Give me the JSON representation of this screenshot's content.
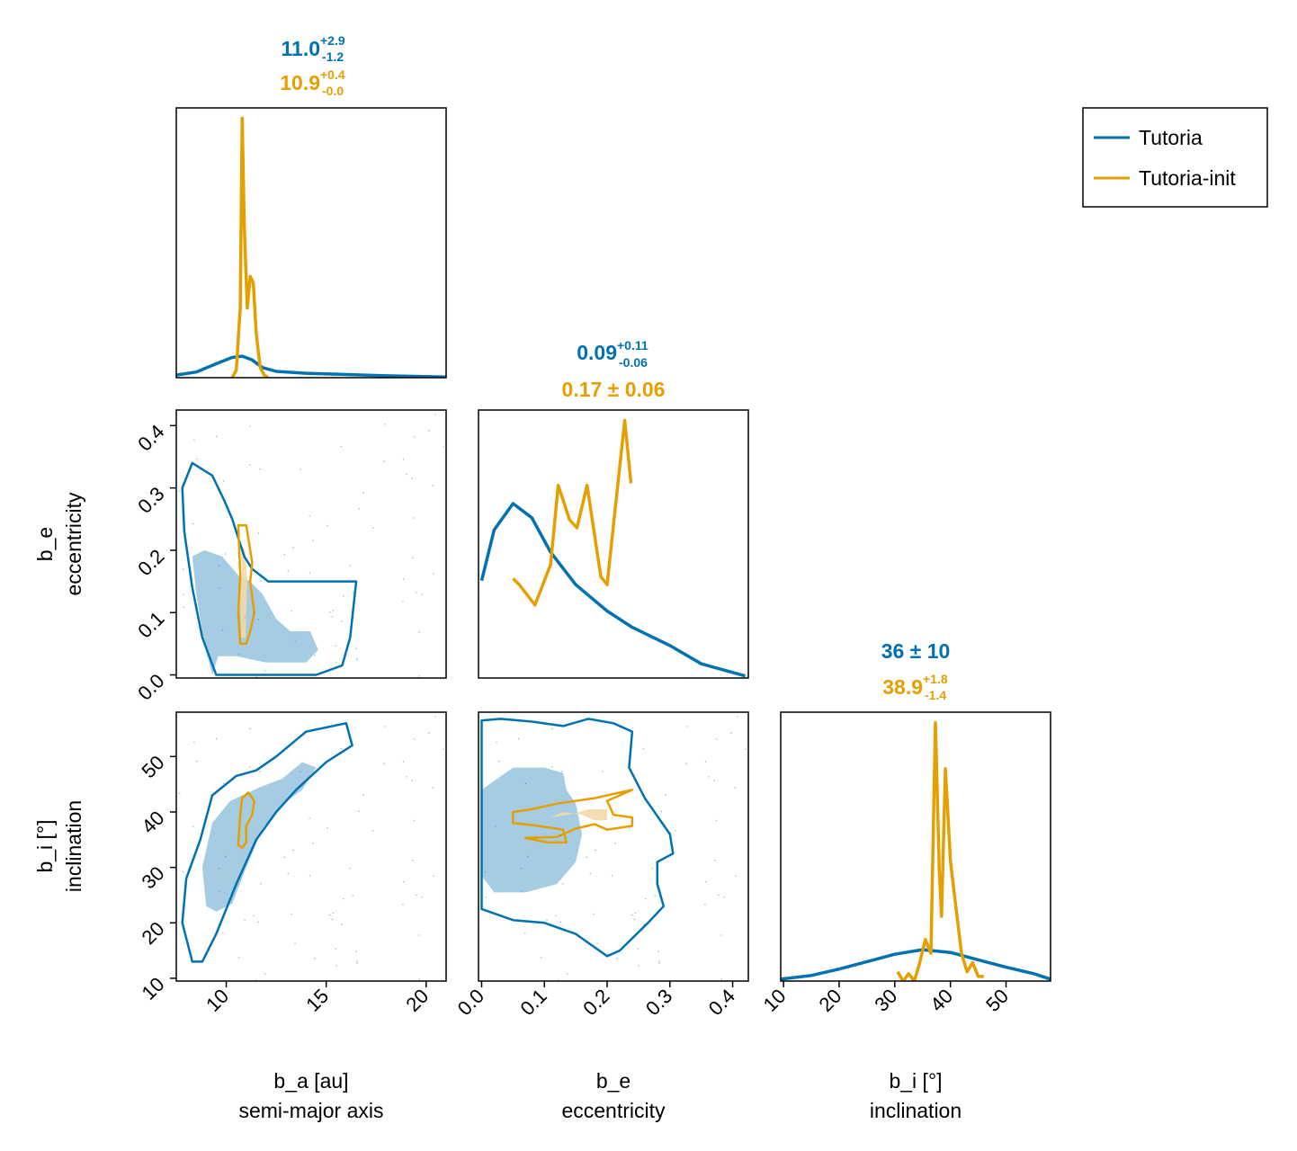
{
  "colors": {
    "tutoria": "#0072b2",
    "tutoria_init": "#e69f00",
    "fill_outer": "#a6cce3",
    "fill_init": "#f3d9a8"
  },
  "legend": {
    "placement": "top-right",
    "items": [
      {
        "label": "Tutoria",
        "color": "#0072b2"
      },
      {
        "label": "Tutoria-init",
        "color": "#e69f00"
      }
    ]
  },
  "axes": {
    "a": {
      "label": "b_a [au]",
      "sublabel": "semi-major axis",
      "range": [
        7.5,
        21
      ],
      "ticks": [
        "10",
        "15",
        "20"
      ],
      "tick_values": [
        10,
        15,
        20
      ]
    },
    "e": {
      "label": "b_e",
      "sublabel": "eccentricity",
      "range": [
        -0.005,
        0.425
      ],
      "ticks": [
        "0.0",
        "0.1",
        "0.2",
        "0.3",
        "0.4"
      ],
      "tick_values": [
        0.0,
        0.1,
        0.2,
        0.3,
        0.4
      ]
    },
    "i": {
      "label": "b_i [°]",
      "sublabel": "inclination",
      "range": [
        9.5,
        58
      ],
      "ticks": [
        "10",
        "20",
        "30",
        "40",
        "50"
      ],
      "tick_values": [
        10,
        20,
        30,
        40,
        50
      ]
    }
  },
  "summaries": {
    "a": {
      "tutoria": {
        "value": "11.0",
        "plus": "+2.9",
        "minus": "-1.2"
      },
      "init": {
        "value": "10.9",
        "plus": "+0.4",
        "minus": "-0.0"
      }
    },
    "e": {
      "tutoria": {
        "value": "0.09",
        "plus": "+0.11",
        "minus": "-0.06"
      },
      "init": {
        "text": "0.17 ± 0.06"
      }
    },
    "i": {
      "tutoria": {
        "text": "36 ± 10"
      },
      "init": {
        "value": "38.9",
        "plus": "+1.8",
        "minus": "-1.4"
      }
    }
  },
  "chart_data": {
    "type": "corner",
    "series": [
      "Tutoria",
      "Tutoria-init"
    ],
    "marginals": {
      "a": {
        "tutoria": [
          [
            7.5,
            0.02
          ],
          [
            8.5,
            0.045
          ],
          [
            9.5,
            0.11
          ],
          [
            10.3,
            0.16
          ],
          [
            10.8,
            0.17
          ],
          [
            11.3,
            0.14
          ],
          [
            11.8,
            0.08
          ],
          [
            12.5,
            0.05
          ],
          [
            14,
            0.035
          ],
          [
            16,
            0.025
          ],
          [
            18,
            0.015
          ],
          [
            21,
            0.005
          ]
        ],
        "init": [
          [
            10.3,
            0.0
          ],
          [
            10.5,
            0.06
          ],
          [
            10.7,
            0.55
          ],
          [
            10.8,
            2.05
          ],
          [
            10.9,
            1.2
          ],
          [
            11.05,
            0.55
          ],
          [
            11.2,
            0.8
          ],
          [
            11.35,
            0.75
          ],
          [
            11.5,
            0.35
          ],
          [
            11.7,
            0.08
          ],
          [
            11.9,
            0.02
          ],
          [
            12.1,
            0.0
          ]
        ]
      },
      "e": {
        "tutoria": [
          [
            0.0,
            4.8
          ],
          [
            0.02,
            7.3
          ],
          [
            0.05,
            8.6
          ],
          [
            0.08,
            7.9
          ],
          [
            0.11,
            6.2
          ],
          [
            0.15,
            4.6
          ],
          [
            0.2,
            3.3
          ],
          [
            0.24,
            2.5
          ],
          [
            0.3,
            1.6
          ],
          [
            0.35,
            0.7
          ],
          [
            0.42,
            0.1
          ]
        ],
        "init": [
          [
            0.05,
            4.9
          ],
          [
            0.06,
            4.6
          ],
          [
            0.085,
            3.6
          ],
          [
            0.11,
            5.6
          ],
          [
            0.122,
            9.5
          ],
          [
            0.14,
            7.8
          ],
          [
            0.152,
            7.4
          ],
          [
            0.168,
            9.5
          ],
          [
            0.19,
            5.0
          ],
          [
            0.2,
            4.6
          ],
          [
            0.212,
            8.1
          ],
          [
            0.228,
            12.7
          ],
          [
            0.238,
            9.6
          ]
        ]
      },
      "i": {
        "tutoria": [
          [
            9.5,
            0.002
          ],
          [
            15,
            0.006
          ],
          [
            20,
            0.013
          ],
          [
            25,
            0.021
          ],
          [
            30,
            0.029
          ],
          [
            35,
            0.034
          ],
          [
            40,
            0.031
          ],
          [
            45,
            0.023
          ],
          [
            50,
            0.015
          ],
          [
            55,
            0.008
          ],
          [
            58,
            0.002
          ]
        ],
        "init": [
          [
            30.5,
            0.01
          ],
          [
            31.5,
            0.0
          ],
          [
            32.5,
            0.008
          ],
          [
            33.5,
            0.0
          ],
          [
            34.5,
            0.02
          ],
          [
            35.5,
            0.045
          ],
          [
            36.5,
            0.03
          ],
          [
            37.3,
            0.28
          ],
          [
            38.0,
            0.12
          ],
          [
            38.4,
            0.07
          ],
          [
            39.1,
            0.23
          ],
          [
            40.0,
            0.13
          ],
          [
            41.0,
            0.08
          ],
          [
            42.0,
            0.03
          ],
          [
            43.0,
            0.01
          ],
          [
            44.0,
            0.02
          ],
          [
            45.0,
            0.005
          ],
          [
            46.0,
            0.005
          ]
        ]
      }
    },
    "pairs": {
      "e_vs_a": {
        "outer_contour": [
          [
            9.5,
            0.0
          ],
          [
            8.8,
            0.06
          ],
          [
            8.3,
            0.14
          ],
          [
            7.9,
            0.23
          ],
          [
            7.8,
            0.3
          ],
          [
            8.3,
            0.34
          ],
          [
            9.3,
            0.32
          ],
          [
            9.9,
            0.28
          ],
          [
            10.3,
            0.25
          ],
          [
            10.9,
            0.19
          ],
          [
            11.3,
            0.17
          ],
          [
            12.1,
            0.15
          ],
          [
            13.1,
            0.15
          ],
          [
            15.0,
            0.15
          ],
          [
            16.5,
            0.15
          ],
          [
            16.4,
            0.12
          ],
          [
            16.2,
            0.06
          ],
          [
            15.8,
            0.015
          ],
          [
            14.5,
            0.0
          ]
        ],
        "inner_fill": [
          [
            9.3,
            0.0
          ],
          [
            8.9,
            0.05
          ],
          [
            8.5,
            0.13
          ],
          [
            8.3,
            0.19
          ],
          [
            8.9,
            0.2
          ],
          [
            9.8,
            0.19
          ],
          [
            10.6,
            0.16
          ],
          [
            11.2,
            0.15
          ],
          [
            11.8,
            0.13
          ],
          [
            12.5,
            0.09
          ],
          [
            13.2,
            0.07
          ],
          [
            14.2,
            0.07
          ],
          [
            14.6,
            0.04
          ],
          [
            14.0,
            0.02
          ],
          [
            12.0,
            0.02
          ],
          [
            10.5,
            0.03
          ],
          [
            9.6,
            0.03
          ]
        ],
        "init_contour": [
          [
            10.7,
            0.05
          ],
          [
            10.6,
            0.1
          ],
          [
            10.7,
            0.16
          ],
          [
            10.6,
            0.24
          ],
          [
            11.0,
            0.24
          ],
          [
            11.1,
            0.22
          ],
          [
            11.3,
            0.18
          ],
          [
            11.2,
            0.15
          ],
          [
            11.4,
            0.1
          ],
          [
            11.2,
            0.07
          ],
          [
            11.0,
            0.05
          ]
        ],
        "init_fill": [
          [
            10.75,
            0.06
          ],
          [
            10.7,
            0.12
          ],
          [
            10.78,
            0.17
          ],
          [
            10.72,
            0.21
          ],
          [
            10.95,
            0.2
          ],
          [
            11.05,
            0.15
          ],
          [
            11.0,
            0.1
          ],
          [
            10.95,
            0.06
          ]
        ]
      },
      "i_vs_a": {
        "outer_contour": [
          [
            8.3,
            13.0
          ],
          [
            7.8,
            20.0
          ],
          [
            8.0,
            28.0
          ],
          [
            8.7,
            35.0
          ],
          [
            9.3,
            43.0
          ],
          [
            10.5,
            46.5
          ],
          [
            11.5,
            47.5
          ],
          [
            12.5,
            50.0
          ],
          [
            14.0,
            54.5
          ],
          [
            16.0,
            56.0
          ],
          [
            16.3,
            52.0
          ],
          [
            15.0,
            49.0
          ],
          [
            13.5,
            44.0
          ],
          [
            12.5,
            40.0
          ],
          [
            11.5,
            35.0
          ],
          [
            10.5,
            27.0
          ],
          [
            9.5,
            18.0
          ],
          [
            8.8,
            13.0
          ]
        ],
        "inner_fill": [
          [
            9.0,
            23.0
          ],
          [
            8.8,
            30.0
          ],
          [
            9.3,
            38.0
          ],
          [
            10.2,
            42.0
          ],
          [
            11.7,
            44.5
          ],
          [
            12.8,
            46.0
          ],
          [
            13.8,
            49.0
          ],
          [
            14.5,
            48.0
          ],
          [
            13.8,
            44.0
          ],
          [
            12.7,
            41.0
          ],
          [
            11.8,
            37.0
          ],
          [
            11.0,
            30.0
          ],
          [
            10.3,
            23.5
          ],
          [
            9.5,
            22.0
          ]
        ],
        "init_contour": [
          [
            10.6,
            34.0
          ],
          [
            10.7,
            39.5
          ],
          [
            10.8,
            42.5
          ],
          [
            11.1,
            43.5
          ],
          [
            11.4,
            42.0
          ],
          [
            11.3,
            39.5
          ],
          [
            11.0,
            37.5
          ],
          [
            11.0,
            34.5
          ],
          [
            10.8,
            33.5
          ]
        ]
      },
      "i_vs_e": {
        "outer_contour": [
          [
            0.0,
            56.5
          ],
          [
            0.03,
            56.8
          ],
          [
            0.08,
            56.3
          ],
          [
            0.13,
            55.5
          ],
          [
            0.17,
            56.8
          ],
          [
            0.21,
            56.0
          ],
          [
            0.24,
            54.5
          ],
          [
            0.235,
            48.0
          ],
          [
            0.26,
            42.5
          ],
          [
            0.3,
            36.0
          ],
          [
            0.305,
            32.5
          ],
          [
            0.28,
            31.0
          ],
          [
            0.28,
            27.0
          ],
          [
            0.29,
            23.0
          ],
          [
            0.265,
            20.0
          ],
          [
            0.22,
            15.0
          ],
          [
            0.2,
            14.0
          ],
          [
            0.15,
            18.0
          ],
          [
            0.1,
            20.0
          ],
          [
            0.05,
            20.5
          ],
          [
            0.0,
            22.5
          ]
        ],
        "inner_fill": [
          [
            0.0,
            44.0
          ],
          [
            0.05,
            48.0
          ],
          [
            0.1,
            48.0
          ],
          [
            0.13,
            47.0
          ],
          [
            0.135,
            44.0
          ],
          [
            0.15,
            41.5
          ],
          [
            0.16,
            36.0
          ],
          [
            0.15,
            31.0
          ],
          [
            0.12,
            27.0
          ],
          [
            0.07,
            25.5
          ],
          [
            0.02,
            25.5
          ],
          [
            0.0,
            28.5
          ]
        ],
        "init_contour": [
          [
            0.05,
            40.0
          ],
          [
            0.05,
            38.0
          ],
          [
            0.09,
            37.5
          ],
          [
            0.13,
            36.8
          ],
          [
            0.135,
            34.5
          ],
          [
            0.105,
            34.5
          ],
          [
            0.07,
            35.3
          ],
          [
            0.12,
            35.5
          ],
          [
            0.15,
            37.0
          ],
          [
            0.18,
            37.8
          ],
          [
            0.2,
            36.8
          ],
          [
            0.24,
            37.5
          ],
          [
            0.24,
            39.0
          ],
          [
            0.21,
            39.5
          ],
          [
            0.2,
            42.0
          ],
          [
            0.23,
            43.5
          ],
          [
            0.24,
            44.0
          ],
          [
            0.18,
            42.5
          ],
          [
            0.12,
            41.5
          ],
          [
            0.08,
            40.5
          ]
        ],
        "init_fill": [
          [
            0.11,
            39.0
          ],
          [
            0.13,
            40.0
          ],
          [
            0.16,
            39.5
          ],
          [
            0.18,
            38.5
          ],
          [
            0.2,
            38.5
          ],
          [
            0.2,
            40.5
          ],
          [
            0.17,
            40.5
          ],
          [
            0.14,
            39.5
          ]
        ]
      }
    }
  }
}
